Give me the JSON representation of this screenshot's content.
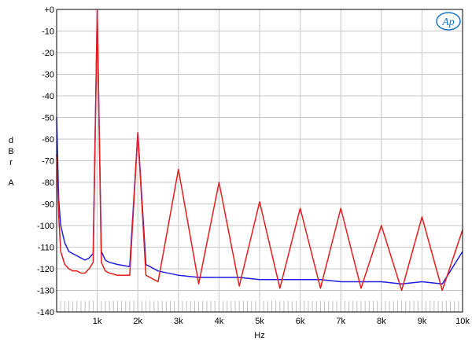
{
  "chart_data": {
    "type": "line",
    "title": "",
    "xlabel": "Hz",
    "ylabel_letters": [
      "d",
      "B",
      "r",
      "",
      "A"
    ],
    "xlim": [
      0,
      10000
    ],
    "ylim": [
      -140,
      0
    ],
    "grid": true,
    "y_ticks": [
      0,
      -10,
      -20,
      -30,
      -40,
      -50,
      -60,
      -70,
      -80,
      -90,
      -100,
      -110,
      -120,
      -130,
      -140
    ],
    "y_tick_labels": [
      "+0",
      "-10",
      "-20",
      "-30",
      "-40",
      "-50",
      "-60",
      "-70",
      "-80",
      "-90",
      "-100",
      "-110",
      "-120",
      "-130",
      "-140"
    ],
    "x_ticks": [
      1000,
      2000,
      3000,
      4000,
      5000,
      6000,
      7000,
      8000,
      9000,
      10000
    ],
    "x_tick_labels": [
      "1k",
      "2k",
      "3k",
      "4k",
      "5k",
      "6k",
      "7k",
      "8k",
      "9k",
      "10k"
    ],
    "logo_text": "Ap",
    "series": [
      {
        "color": "#1f1fe0",
        "x": [
          0,
          50,
          100,
          200,
          300,
          400,
          500,
          600,
          700,
          800,
          900,
          1000,
          1100,
          1200,
          1300,
          1500,
          1800,
          2000,
          2200,
          2500,
          3000,
          3500,
          4000,
          4500,
          5000,
          5500,
          6000,
          6500,
          7000,
          7500,
          8000,
          8500,
          9000,
          9500,
          10000
        ],
        "values": [
          -50,
          -88,
          -100,
          -108,
          -112,
          -113,
          -114,
          -115,
          -116,
          -115,
          -113,
          -0.5,
          -112,
          -116,
          -117,
          -118,
          -119,
          -57,
          -118,
          -121,
          -123,
          -124,
          -124,
          -124,
          -125,
          -125,
          -125,
          -125,
          -126,
          -126,
          -126,
          -127,
          -126,
          -127,
          -112
        ]
      },
      {
        "color": "#e81c1c",
        "x": [
          0,
          50,
          100,
          200,
          300,
          400,
          500,
          600,
          700,
          800,
          900,
          1000,
          1100,
          1200,
          1300,
          1500,
          1800,
          2000,
          2200,
          2500,
          3000,
          3500,
          4000,
          4500,
          5000,
          5500,
          6000,
          6500,
          7000,
          7500,
          8000,
          8500,
          9000,
          9500,
          10000
        ],
        "values": [
          -67,
          -95,
          -112,
          -118,
          -120,
          -121,
          -121,
          -122,
          -122,
          -120,
          -117,
          -0.5,
          -117,
          -121,
          -122,
          -123,
          -123,
          -57,
          -123,
          -126,
          -74,
          -127,
          -80,
          -128,
          -89,
          -129,
          -92,
          -129,
          -92,
          -129,
          -100,
          -130,
          -96,
          -130,
          -102
        ]
      }
    ]
  }
}
